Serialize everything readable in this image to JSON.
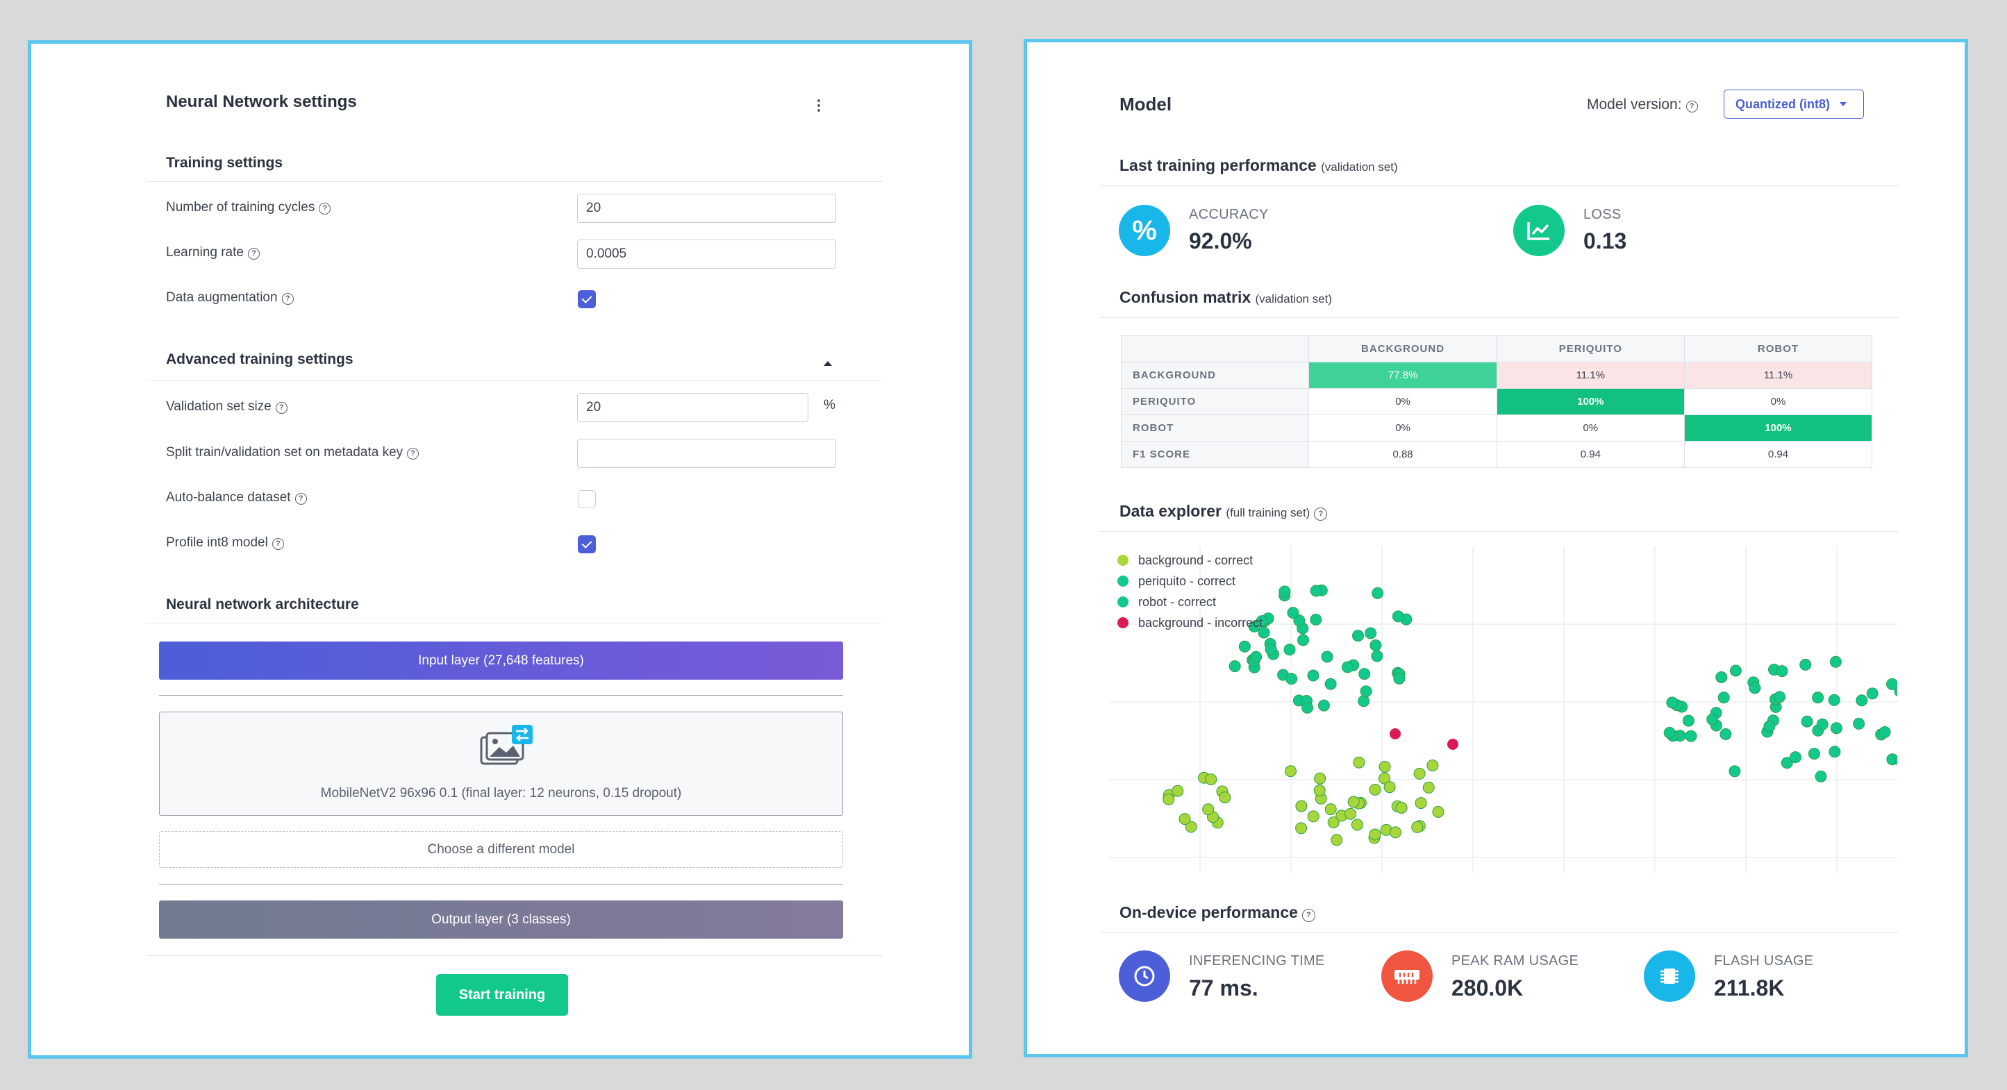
{
  "colors": {
    "accent": "#4c5ed8",
    "green": "#12c98b",
    "cyan": "#19b6e9",
    "red": "#d91a55",
    "lime": "#a6d63a"
  },
  "left": {
    "title": "Neural Network settings",
    "menu_icon": "more-vertical-icon",
    "training_settings": {
      "title": "Training settings",
      "cycles_label": "Number of training cycles",
      "cycles_value": "20",
      "lr_label": "Learning rate",
      "lr_value": "0.0005",
      "aug_label": "Data augmentation",
      "aug_checked": true
    },
    "advanced": {
      "title": "Advanced training settings",
      "val_label": "Validation set size",
      "val_value": "20",
      "val_unit": "%",
      "split_label": "Split train/validation set on metadata key",
      "split_value": "",
      "balance_label": "Auto-balance dataset",
      "balance_checked": false,
      "profile_label": "Profile int8 model",
      "profile_checked": true
    },
    "architecture": {
      "title": "Neural network architecture",
      "input_layer": "Input layer (27,648 features)",
      "model_desc": "MobileNetV2 96x96 0.1 (final layer: 12 neurons, 0.15 dropout)",
      "choose_model": "Choose a different model",
      "output_layer": "Output layer (3 classes)"
    },
    "start_button": "Start training"
  },
  "right": {
    "title": "Model",
    "version_label": "Model version:",
    "version_value": "Quantized (int8)",
    "last_perf": {
      "title": "Last training performance",
      "subtitle": "(validation set)"
    },
    "accuracy": {
      "label": "ACCURACY",
      "value": "92.0%"
    },
    "loss": {
      "label": "LOSS",
      "value": "0.13"
    },
    "confusion": {
      "title": "Confusion matrix",
      "subtitle": "(validation set)",
      "columns": [
        "BACKGROUND",
        "PERIQUITO",
        "ROBOT"
      ],
      "rows": [
        {
          "label": "BACKGROUND",
          "cells": [
            "77.8%",
            "11.1%",
            "11.1%"
          ]
        },
        {
          "label": "PERIQUITO",
          "cells": [
            "0%",
            "100%",
            "0%"
          ]
        },
        {
          "label": "ROBOT",
          "cells": [
            "0%",
            "0%",
            "100%"
          ]
        },
        {
          "label": "F1 SCORE",
          "cells": [
            "0.88",
            "0.94",
            "0.94"
          ]
        }
      ]
    },
    "explorer": {
      "title": "Data explorer",
      "subtitle": "(full training set)",
      "legend": [
        "background - correct",
        "periquito - correct",
        "robot - correct",
        "background - incorrect"
      ]
    },
    "ondevice": {
      "title": "On-device performance",
      "inferencing": {
        "label": "INFERENCING TIME",
        "value": "77 ms."
      },
      "ram": {
        "label": "PEAK RAM USAGE",
        "value": "280.0K"
      },
      "flash": {
        "label": "FLASH USAGE",
        "value": "211.8K"
      }
    }
  }
}
